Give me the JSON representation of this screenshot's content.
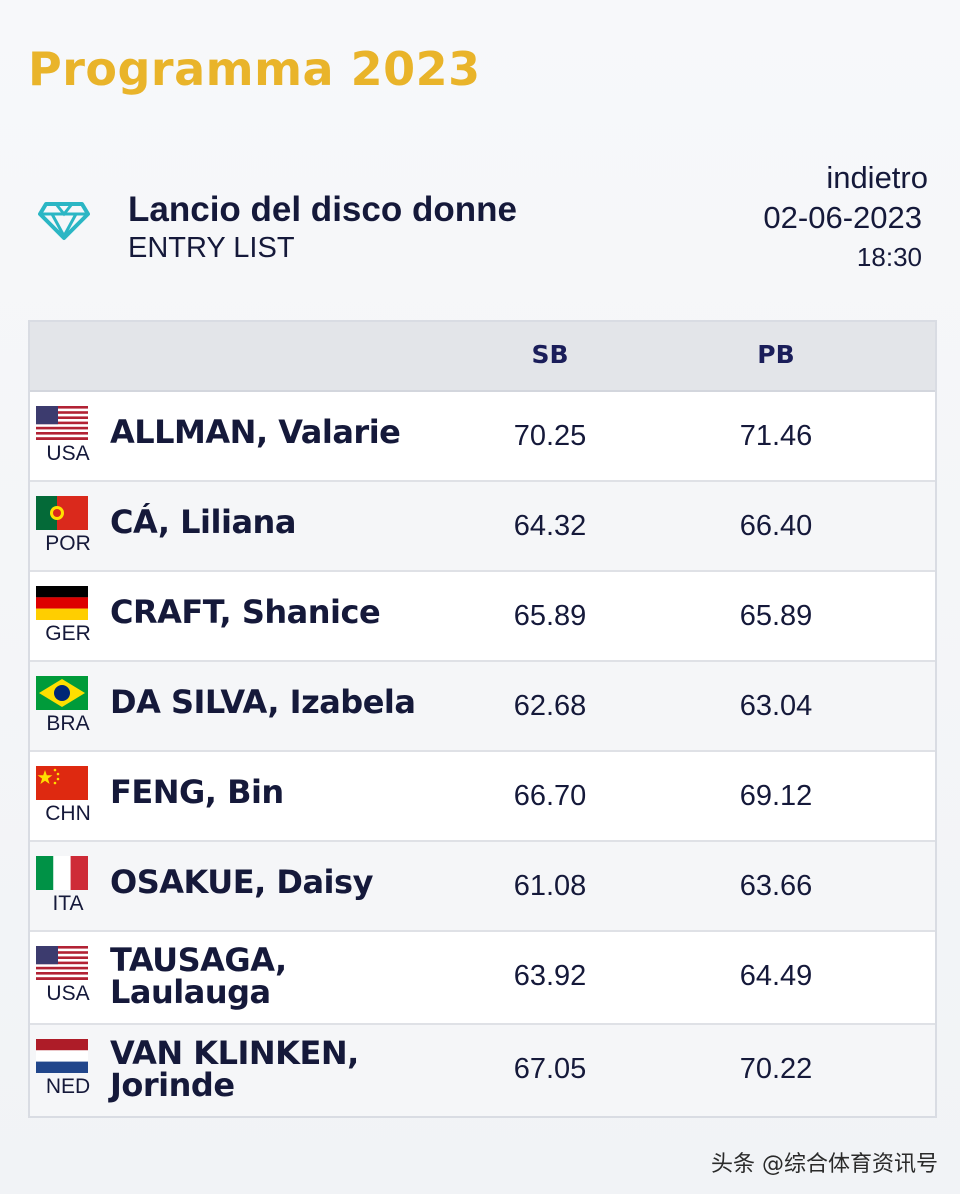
{
  "header": {
    "title": "Programma 2023"
  },
  "event": {
    "icon": "diamond-icon",
    "title": "Lancio del disco donne",
    "subtitle": "ENTRY LIST",
    "back_label": "indietro",
    "date": "02-06-2023",
    "time": "18:30"
  },
  "table": {
    "columns": {
      "sb": "SB",
      "pb": "PB"
    },
    "rows": [
      {
        "country": "USA",
        "flag": "usa-flag-icon",
        "name": "ALLMAN, Valarie",
        "sb": "70.25",
        "pb": "71.46"
      },
      {
        "country": "POR",
        "flag": "portugal-flag-icon",
        "name": "CÁ, Liliana",
        "sb": "64.32",
        "pb": "66.40"
      },
      {
        "country": "GER",
        "flag": "germany-flag-icon",
        "name": "CRAFT, Shanice",
        "sb": "65.89",
        "pb": "65.89"
      },
      {
        "country": "BRA",
        "flag": "brazil-flag-icon",
        "name": "DA SILVA, Izabela",
        "sb": "62.68",
        "pb": "63.04"
      },
      {
        "country": "CHN",
        "flag": "china-flag-icon",
        "name": "FENG, Bin",
        "sb": "66.70",
        "pb": "69.12"
      },
      {
        "country": "ITA",
        "flag": "italy-flag-icon",
        "name": "OSAKUE, Daisy",
        "sb": "61.08",
        "pb": "63.66"
      },
      {
        "country": "USA",
        "flag": "usa-flag-icon",
        "name": "TAUSAGA, Laulauga",
        "sb": "63.92",
        "pb": "64.49"
      },
      {
        "country": "NED",
        "flag": "netherlands-flag-icon",
        "name": "VAN KLINKEN, Jorinde",
        "sb": "67.05",
        "pb": "70.22"
      }
    ]
  },
  "watermark": "头条 @综合体育资讯号",
  "colors": {
    "title_gold": "#e9b42a",
    "icon_teal": "#2bb6c4",
    "text_navy": "#15193a"
  }
}
